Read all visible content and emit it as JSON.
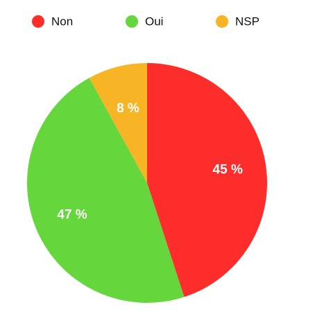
{
  "chart_data": {
    "type": "pie",
    "categories": [
      "Non",
      "Oui",
      "NSP"
    ],
    "values": [
      45,
      47,
      8
    ],
    "value_labels": [
      "45 %",
      "47 %",
      "8 %"
    ],
    "colors": [
      "#fc2d2a",
      "#65d63c",
      "#f7b526"
    ]
  }
}
